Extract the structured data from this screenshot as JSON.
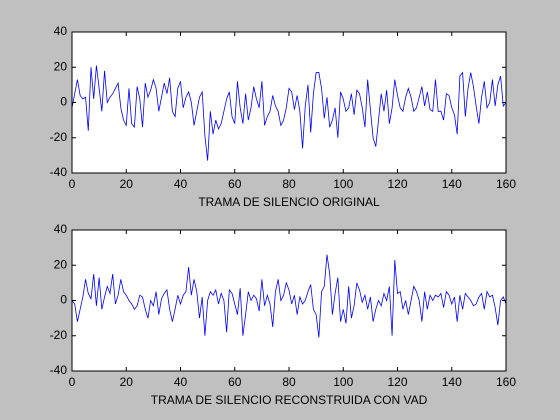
{
  "chart_data": [
    {
      "type": "line",
      "xlabel": "TRAMA DE SILENCIO ORIGINAL",
      "color": "#0000ff",
      "x": [
        0,
        1,
        2,
        3,
        4,
        5,
        6,
        7,
        8,
        9,
        10,
        11,
        12,
        13,
        14,
        15,
        16,
        17,
        18,
        19,
        20,
        21,
        22,
        23,
        24,
        25,
        26,
        27,
        28,
        29,
        30,
        31,
        32,
        33,
        34,
        35,
        36,
        37,
        38,
        39,
        40,
        41,
        42,
        43,
        44,
        45,
        46,
        47,
        48,
        49,
        50,
        51,
        52,
        53,
        54,
        55,
        56,
        57,
        58,
        59,
        60,
        61,
        62,
        63,
        64,
        65,
        66,
        67,
        68,
        69,
        70,
        71,
        72,
        73,
        74,
        75,
        76,
        77,
        78,
        79,
        80,
        81,
        82,
        83,
        84,
        85,
        86,
        87,
        88,
        89,
        90,
        91,
        92,
        93,
        94,
        95,
        96,
        97,
        98,
        99,
        100,
        101,
        102,
        103,
        104,
        105,
        106,
        107,
        108,
        109,
        110,
        111,
        112,
        113,
        114,
        115,
        116,
        117,
        118,
        119,
        120,
        121,
        122,
        123,
        124,
        125,
        126,
        127,
        128,
        129,
        130,
        131,
        132,
        133,
        134,
        135,
        136,
        137,
        138,
        139,
        140,
        141,
        142,
        143,
        144,
        145,
        146,
        147,
        148,
        149,
        150,
        151,
        152,
        153,
        154,
        155,
        156,
        157,
        158,
        159,
        160
      ],
      "values": [
        -3,
        5,
        13,
        4,
        2,
        3,
        -16,
        20,
        2,
        21,
        8,
        -5,
        18,
        0,
        3,
        5,
        8,
        11,
        -3,
        -10,
        -13,
        8,
        -12,
        -14,
        9,
        2,
        -14,
        11,
        3,
        7,
        13,
        8,
        -5,
        3,
        11,
        5,
        14,
        -5,
        -8,
        8,
        12,
        -3,
        3,
        6,
        0,
        -13,
        -5,
        3,
        6,
        -19,
        -33,
        -5,
        -18,
        -10,
        -15,
        -12,
        -5,
        2,
        6,
        -8,
        -12,
        12,
        -3,
        -12,
        5,
        -10,
        -3,
        9,
        2,
        -3,
        12,
        -13,
        -8,
        -5,
        4,
        -2,
        -5,
        -13,
        -10,
        -3,
        8,
        6,
        -4,
        4,
        -5,
        -26,
        -2,
        10,
        -17,
        5,
        17,
        17,
        8,
        -9,
        3,
        -14,
        -10,
        -3,
        -20,
        6,
        2,
        -5,
        -3,
        5,
        -7,
        7,
        5,
        -3,
        -14,
        13,
        -4,
        -20,
        -25,
        -10,
        5,
        -5,
        7,
        -12,
        -3,
        13,
        4,
        -3,
        -5,
        3,
        8,
        3,
        -5,
        -3,
        3,
        9,
        -2,
        6,
        -4,
        -5,
        13,
        -5,
        -5,
        -10,
        5,
        4,
        -3,
        -7,
        -18,
        15,
        17,
        -8,
        8,
        17,
        9,
        -2,
        -12,
        3,
        12,
        -3,
        0,
        13,
        -2,
        10,
        15,
        -2,
        0
      ],
      "xlim": [
        0,
        160
      ],
      "xticks": [
        0,
        20,
        40,
        60,
        80,
        100,
        120,
        140,
        160
      ],
      "ylim": [
        -40,
        40
      ],
      "yticks": [
        -40,
        -20,
        0,
        20,
        40
      ]
    },
    {
      "type": "line",
      "xlabel": "TRAMA DE SILENCIO RECONSTRUIDA CON VAD",
      "color": "#0000ff",
      "x": [
        0,
        1,
        2,
        3,
        4,
        5,
        6,
        7,
        8,
        9,
        10,
        11,
        12,
        13,
        14,
        15,
        16,
        17,
        18,
        19,
        20,
        21,
        22,
        23,
        24,
        25,
        26,
        27,
        28,
        29,
        30,
        31,
        32,
        33,
        34,
        35,
        36,
        37,
        38,
        39,
        40,
        41,
        42,
        43,
        44,
        45,
        46,
        47,
        48,
        49,
        50,
        51,
        52,
        53,
        54,
        55,
        56,
        57,
        58,
        59,
        60,
        61,
        62,
        63,
        64,
        65,
        66,
        67,
        68,
        69,
        70,
        71,
        72,
        73,
        74,
        75,
        76,
        77,
        78,
        79,
        80,
        81,
        82,
        83,
        84,
        85,
        86,
        87,
        88,
        89,
        90,
        91,
        92,
        93,
        94,
        95,
        96,
        97,
        98,
        99,
        100,
        101,
        102,
        103,
        104,
        105,
        106,
        107,
        108,
        109,
        110,
        111,
        112,
        113,
        114,
        115,
        116,
        117,
        118,
        119,
        120,
        121,
        122,
        123,
        124,
        125,
        126,
        127,
        128,
        129,
        130,
        131,
        132,
        133,
        134,
        135,
        136,
        137,
        138,
        139,
        140,
        141,
        142,
        143,
        144,
        145,
        146,
        147,
        148,
        149,
        150,
        151,
        152,
        153,
        154,
        155,
        156,
        157,
        158,
        159,
        160
      ],
      "values": [
        0,
        -2,
        -12,
        -5,
        2,
        12,
        4,
        1,
        15,
        -3,
        13,
        -5,
        2,
        8,
        4,
        15,
        -2,
        3,
        12,
        5,
        3,
        0,
        -2,
        -5,
        -3,
        3,
        2,
        -5,
        -10,
        0,
        -3,
        5,
        -8,
        1,
        4,
        6,
        -5,
        -12,
        -5,
        3,
        -2,
        3,
        5,
        19,
        3,
        12,
        5,
        -10,
        2,
        -20,
        0,
        5,
        3,
        6,
        -2,
        4,
        0,
        -18,
        6,
        4,
        -2,
        -8,
        7,
        -20,
        -8,
        5,
        0,
        3,
        1,
        -6,
        12,
        -3,
        3,
        -2,
        -15,
        5,
        12,
        0,
        3,
        10,
        6,
        -2,
        3,
        -8,
        2,
        -2,
        0,
        5,
        9,
        -5,
        -8,
        -21,
        5,
        8,
        26,
        15,
        -8,
        4,
        13,
        -12,
        -5,
        -13,
        8,
        -10,
        -3,
        10,
        6,
        -1,
        3,
        -5,
        2,
        -12,
        -5,
        0,
        -3,
        4,
        0,
        8,
        -20,
        23,
        4,
        5,
        -5,
        0,
        -8,
        0,
        8,
        5,
        0,
        -12,
        5,
        -5,
        3,
        0,
        3,
        2,
        4,
        -4,
        5,
        3,
        -2,
        2,
        -12,
        3,
        -5,
        4,
        2,
        0,
        -3,
        -2,
        2,
        4,
        -5,
        5,
        2,
        3,
        -4,
        -14,
        0,
        2,
        -2
      ],
      "xlim": [
        0,
        160
      ],
      "xticks": [
        0,
        20,
        40,
        60,
        80,
        100,
        120,
        140,
        160
      ],
      "ylim": [
        -40,
        40
      ],
      "yticks": [
        -40,
        -20,
        0,
        20,
        40
      ]
    }
  ]
}
